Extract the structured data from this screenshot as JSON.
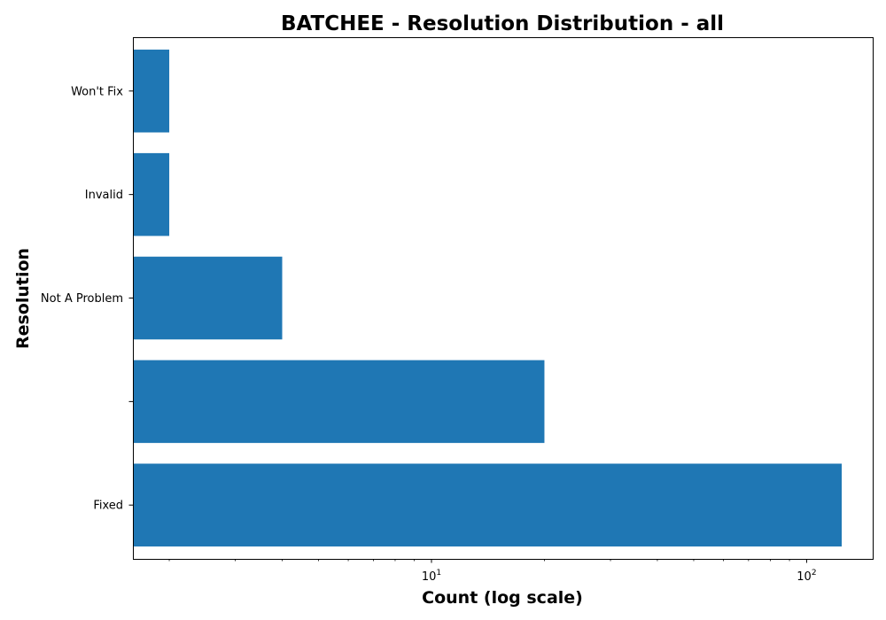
{
  "chart_data": {
    "type": "bar",
    "orientation": "horizontal",
    "title": "BATCHEE - Resolution Distribution - all",
    "xlabel": "Count (log scale)",
    "ylabel": "Resolution",
    "x_scale": "log",
    "xlim": [
      1.6,
      150
    ],
    "categories": [
      "Fixed",
      "",
      "Not A Problem",
      "Invalid",
      "Won't Fix"
    ],
    "values": [
      124,
      20,
      4,
      2,
      2
    ],
    "x_ticks": [
      {
        "value": 10,
        "label": "10",
        "exponent": "1"
      },
      {
        "value": 100,
        "label": "10",
        "exponent": "2"
      }
    ],
    "grid": false,
    "legend": "none",
    "bar_color": "#1f77b4"
  }
}
